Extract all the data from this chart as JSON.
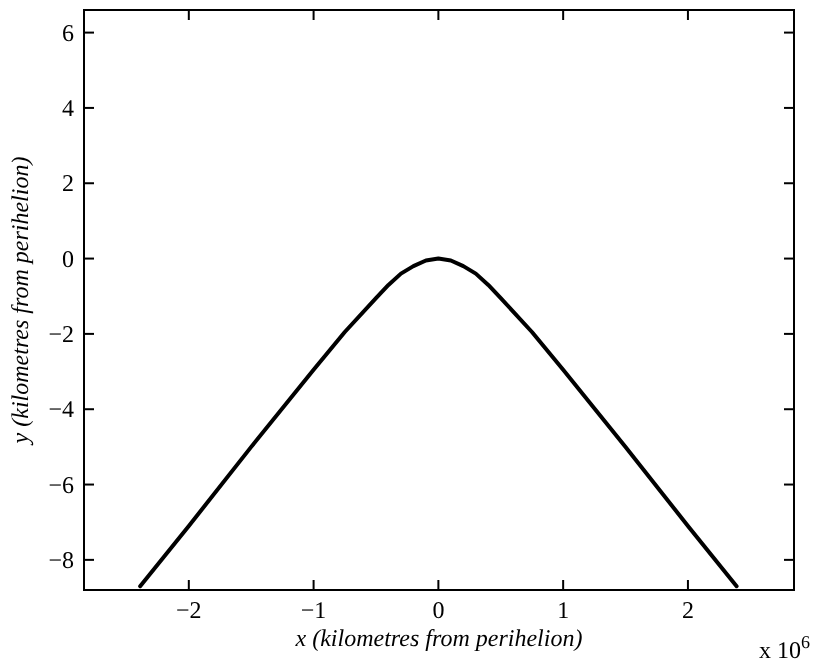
{
  "chart_data": {
    "type": "line",
    "xlabel": "x (kilometres from perihelion)",
    "ylabel": "y (kilometres from perihelion)",
    "annotations": [
      "x 10$^{6}$"
    ],
    "x": [
      -2.39,
      -2,
      -1.5,
      -1,
      -0.75,
      -0.5,
      -0.4,
      -0.3,
      -0.2,
      -0.1,
      0,
      0.1,
      0.2,
      0.3,
      0.4,
      0.5,
      0.75,
      1,
      1.5,
      2,
      2.39
    ],
    "series": [
      {
        "color": "#000000",
        "values": [
          -8.7,
          -7.1,
          -5.0,
          -2.95,
          -1.95,
          -1.05,
          -0.7,
          -0.4,
          -0.2,
          -0.05,
          0,
          -0.05,
          -0.2,
          -0.4,
          -0.7,
          -1.05,
          -1.95,
          -2.95,
          -5.0,
          -7.1,
          -8.7
        ]
      }
    ],
    "xlim": [
      -2.84,
      2.85
    ],
    "ylim": [
      -8.8,
      6.6
    ],
    "xticks": [
      {
        "value": -2,
        "label": "−2"
      },
      {
        "value": -1,
        "label": "−1"
      },
      0,
      1,
      2
    ],
    "yticks": [
      {
        "value": -8,
        "label": "−8"
      },
      {
        "value": -6,
        "label": "−6"
      },
      {
        "value": -4,
        "label": "−4"
      },
      {
        "value": -2,
        "label": "−2"
      },
      0,
      2,
      4,
      6
    ],
    "grid": false,
    "marker": "none",
    "line_style": "solid"
  }
}
